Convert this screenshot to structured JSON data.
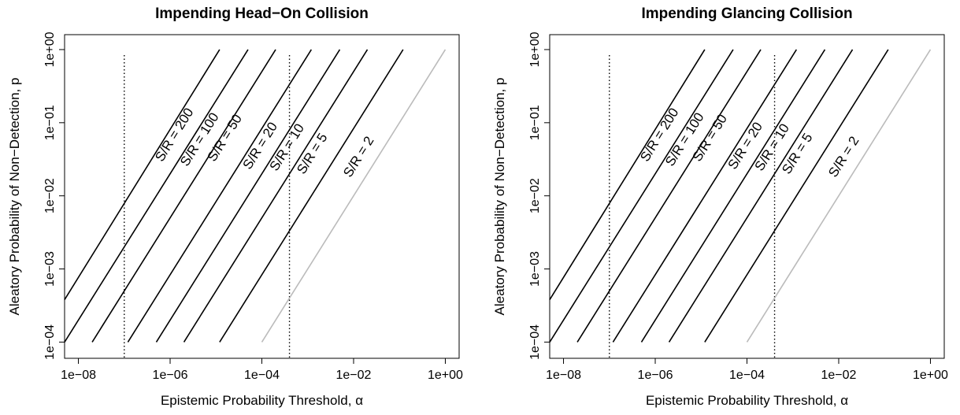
{
  "chart_data": [
    {
      "type": "line",
      "title": "Impending Head−On Collision",
      "xlabel": "Epistemic Probability Threshold, α",
      "ylabel": "Aleatory Probability of Non−Detection, p",
      "x_scale": "log",
      "y_scale": "log",
      "xlim": [
        5e-09,
        2
      ],
      "ylim": [
        6e-05,
        1.6
      ],
      "x_ticks": [
        1e-08,
        1e-06,
        0.0001,
        0.01,
        1
      ],
      "x_tick_labels": [
        "1e−08",
        "1e−06",
        "1e−04",
        "1e−02",
        "1e+00"
      ],
      "y_ticks": [
        0.0001,
        0.001,
        0.01,
        0.1,
        1
      ],
      "y_tick_labels": [
        "1e−04",
        "1e−03",
        "1e−02",
        "1e−01",
        "1e+00"
      ],
      "grid": false,
      "vlines": [
        1e-07,
        0.0004
      ],
      "series": [
        {
          "label": "S/R = 200",
          "color": "#000000",
          "x": [
            5e-09,
            1.2e-05
          ],
          "y": [
            0.00038,
            1
          ]
        },
        {
          "label": "S/R = 100",
          "color": "#000000",
          "x": [
            5e-09,
            5e-05
          ],
          "y": [
            0.0001,
            1
          ]
        },
        {
          "label": "S/R = 50",
          "color": "#000000",
          "x": [
            2e-08,
            0.0002
          ],
          "y": [
            0.0001,
            1
          ]
        },
        {
          "label": "S/R = 20",
          "color": "#000000",
          "x": [
            1.2e-07,
            0.0012
          ],
          "y": [
            0.0001,
            1
          ]
        },
        {
          "label": "S/R = 10",
          "color": "#000000",
          "x": [
            5e-07,
            0.005
          ],
          "y": [
            0.0001,
            1
          ]
        },
        {
          "label": "S/R = 5",
          "color": "#000000",
          "x": [
            2e-06,
            0.02
          ],
          "y": [
            0.0001,
            1
          ]
        },
        {
          "label": "S/R = 2",
          "color": "#000000",
          "x": [
            1.2e-05,
            0.12
          ],
          "y": [
            0.0001,
            1
          ]
        },
        {
          "label": "",
          "color": "#bbbbbb",
          "x": [
            0.0001,
            1
          ],
          "y": [
            0.0001,
            1
          ]
        }
      ]
    },
    {
      "type": "line",
      "title": "Impending Glancing Collision",
      "xlabel": "Epistemic Probability Threshold, α",
      "ylabel": "Aleatory Probability of Non−Detection, p",
      "x_scale": "log",
      "y_scale": "log",
      "xlim": [
        5e-09,
        2
      ],
      "ylim": [
        6e-05,
        1.6
      ],
      "x_ticks": [
        1e-08,
        1e-06,
        0.0001,
        0.01,
        1
      ],
      "x_tick_labels": [
        "1e−08",
        "1e−06",
        "1e−04",
        "1e−02",
        "1e+00"
      ],
      "y_ticks": [
        0.0001,
        0.001,
        0.01,
        0.1,
        1
      ],
      "y_tick_labels": [
        "1e−04",
        "1e−03",
        "1e−02",
        "1e−01",
        "1e+00"
      ],
      "grid": false,
      "vlines": [
        1e-07,
        0.0004
      ],
      "series": [
        {
          "label": "S/R = 200",
          "color": "#000000",
          "x": [
            5e-09,
            1.2e-05
          ],
          "y": [
            0.00038,
            1
          ]
        },
        {
          "label": "S/R = 100",
          "color": "#000000",
          "x": [
            5e-09,
            5e-05
          ],
          "y": [
            0.0001,
            1
          ]
        },
        {
          "label": "S/R = 50",
          "color": "#000000",
          "x": [
            2e-08,
            0.0002
          ],
          "y": [
            0.0001,
            1
          ]
        },
        {
          "label": "S/R = 20",
          "color": "#000000",
          "x": [
            1.2e-07,
            0.0012
          ],
          "y": [
            0.0001,
            1
          ]
        },
        {
          "label": "S/R = 10",
          "color": "#000000",
          "x": [
            5e-07,
            0.005
          ],
          "y": [
            0.0001,
            1
          ]
        },
        {
          "label": "S/R = 5",
          "color": "#000000",
          "x": [
            2e-06,
            0.02
          ],
          "y": [
            0.0001,
            1
          ]
        },
        {
          "label": "S/R = 2",
          "color": "#000000",
          "x": [
            1.2e-05,
            0.12
          ],
          "y": [
            0.0001,
            1
          ]
        },
        {
          "label": "",
          "color": "#bbbbbb",
          "x": [
            0.0001,
            1
          ],
          "y": [
            0.0001,
            1
          ]
        }
      ]
    }
  ]
}
